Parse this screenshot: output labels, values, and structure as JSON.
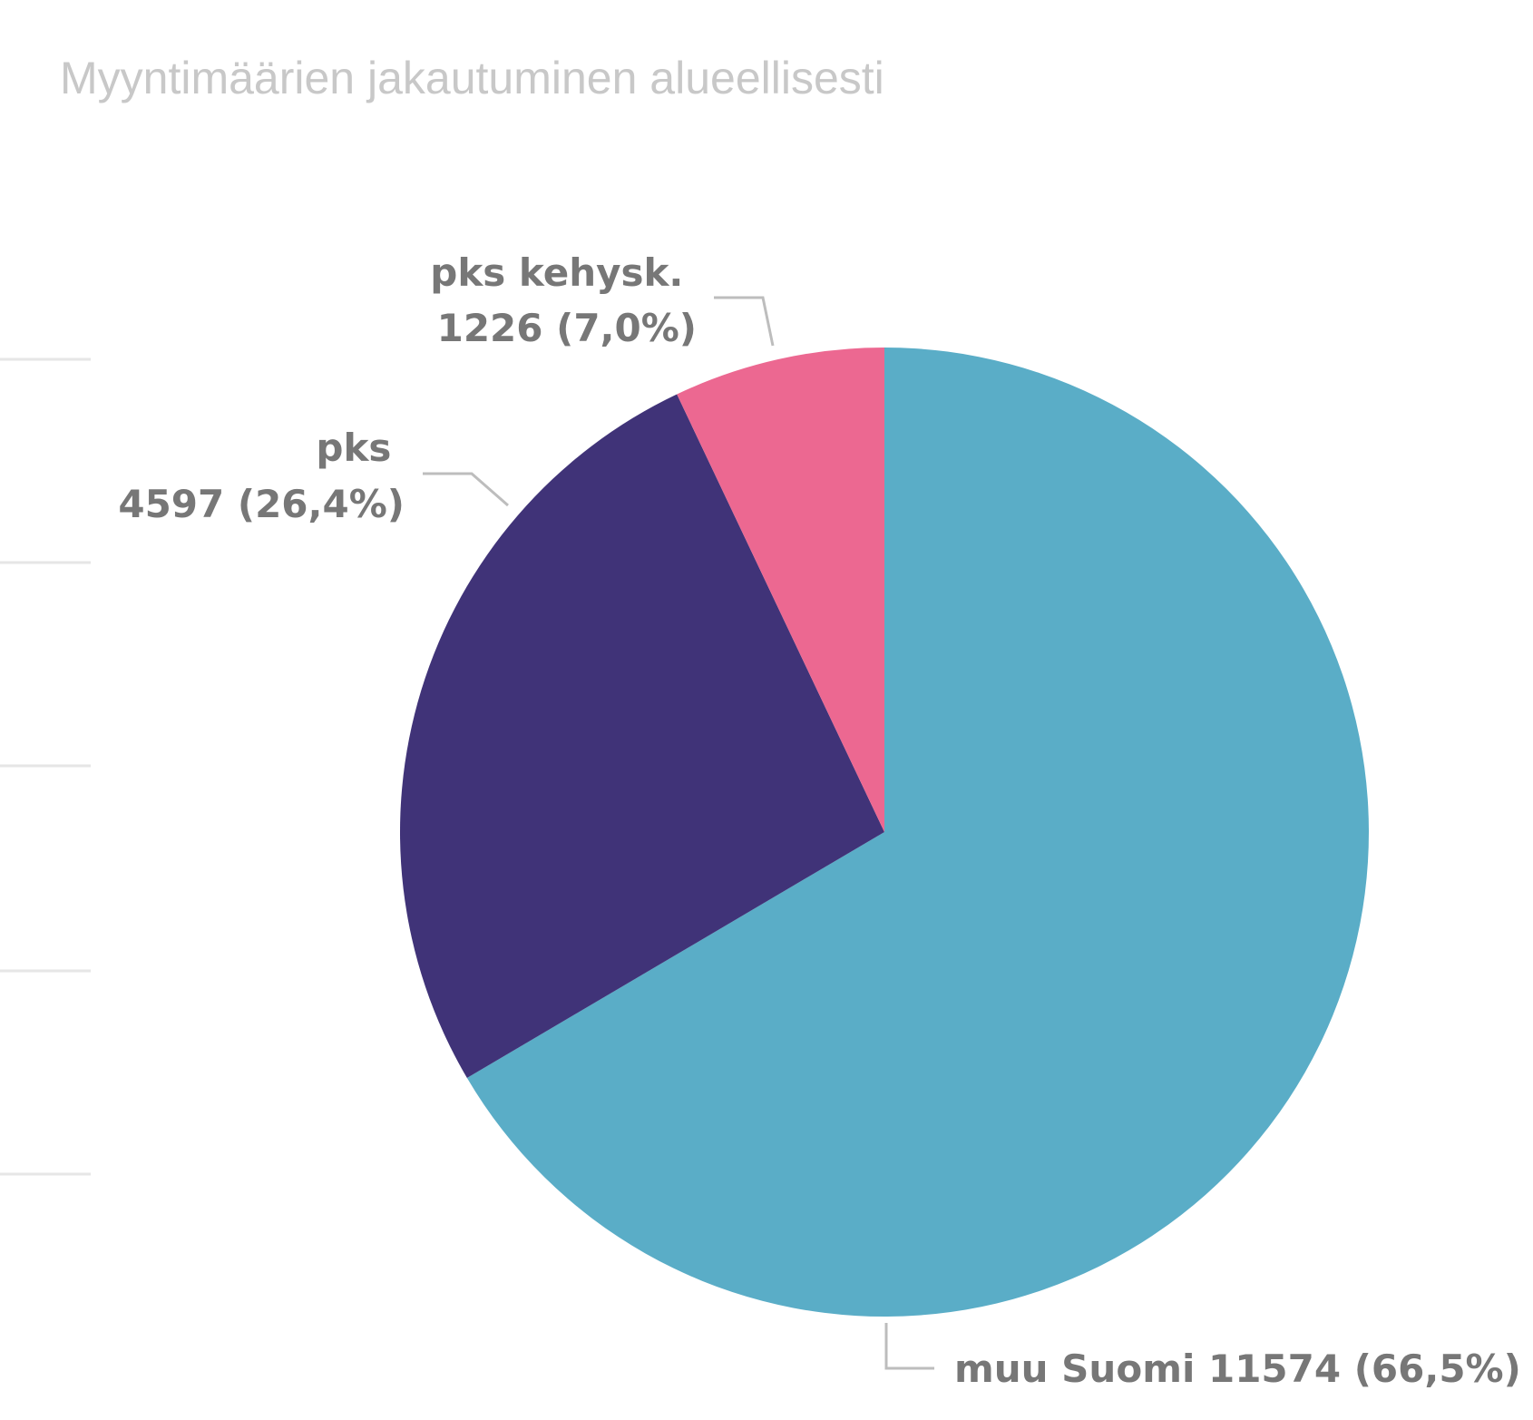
{
  "chart_data": {
    "type": "pie",
    "title": "Myyntimäärien jakautuminen alueellisesti",
    "legend": "none",
    "slices": [
      {
        "name": "muu Suomi",
        "value": 11574,
        "percent_label": "(66,5%)",
        "color": "#5aadc7"
      },
      {
        "name": "pks",
        "value": 4597,
        "percent_label": "(26,4%)",
        "color": "#403378"
      },
      {
        "name": "pks kehysk.",
        "value": 1226,
        "percent_label": "(7,0%)",
        "color": "#ec6891"
      }
    ]
  }
}
